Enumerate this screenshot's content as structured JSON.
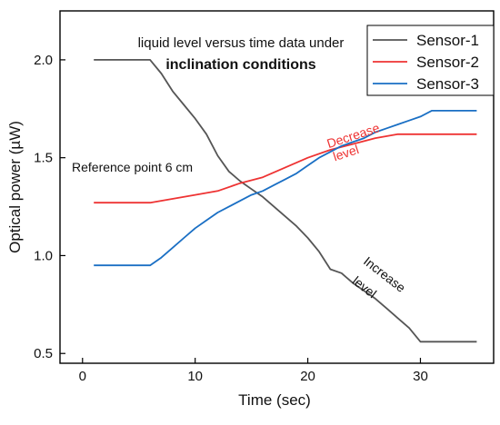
{
  "chart_data": {
    "type": "line",
    "xlabel": "Time (sec)",
    "ylabel": "Optical power (µW)",
    "xlim": [
      -2,
      36.5
    ],
    "ylim": [
      0.45,
      2.25
    ],
    "xticks": [
      0,
      10,
      20,
      30
    ],
    "yticks": [
      0.5,
      1.0,
      1.5,
      2.0
    ],
    "ytick_labels": [
      "0.5",
      "1.0",
      "1.5",
      "2.0"
    ],
    "grid": false,
    "legend_position": "top-right",
    "annotations": {
      "title_line1": "liquid level versus time data under",
      "title_line2": "inclination conditions",
      "reference": "Reference point 6 cm",
      "decrease_1": "Decrease",
      "decrease_2": "level",
      "increase_1": "Increase",
      "increase_2": "level"
    },
    "series": [
      {
        "name": "Sensor-1",
        "color": "#555555",
        "x": [
          1,
          6,
          7,
          8,
          9,
          10,
          11,
          12,
          13,
          14,
          15,
          16,
          17,
          18,
          19,
          20,
          21,
          22,
          23,
          24,
          25,
          26,
          27,
          28,
          29,
          30,
          31,
          35
        ],
        "y": [
          2.0,
          2.0,
          1.93,
          1.84,
          1.77,
          1.7,
          1.62,
          1.51,
          1.43,
          1.38,
          1.34,
          1.3,
          1.25,
          1.2,
          1.15,
          1.09,
          1.02,
          0.93,
          0.91,
          0.86,
          0.82,
          0.78,
          0.73,
          0.68,
          0.63,
          0.56,
          0.56,
          0.56
        ]
      },
      {
        "name": "Sensor-2",
        "color": "#ee3333",
        "x": [
          1,
          6,
          10,
          12,
          14,
          16,
          18,
          20,
          22,
          24,
          26,
          28,
          29,
          35
        ],
        "y": [
          1.27,
          1.27,
          1.31,
          1.33,
          1.37,
          1.4,
          1.45,
          1.5,
          1.54,
          1.57,
          1.6,
          1.62,
          1.62,
          1.62
        ]
      },
      {
        "name": "Sensor-3",
        "color": "#1a6fc4",
        "x": [
          1,
          6,
          7,
          8,
          9,
          10,
          11,
          12,
          13,
          14,
          15,
          16,
          17,
          18,
          19,
          20,
          21,
          22,
          23,
          24,
          25,
          26,
          27,
          28,
          29,
          30,
          31,
          35
        ],
        "y": [
          0.95,
          0.95,
          0.99,
          1.04,
          1.09,
          1.14,
          1.18,
          1.22,
          1.25,
          1.28,
          1.31,
          1.33,
          1.36,
          1.39,
          1.42,
          1.46,
          1.5,
          1.53,
          1.56,
          1.58,
          1.6,
          1.63,
          1.65,
          1.67,
          1.69,
          1.71,
          1.74,
          1.74
        ]
      }
    ]
  }
}
